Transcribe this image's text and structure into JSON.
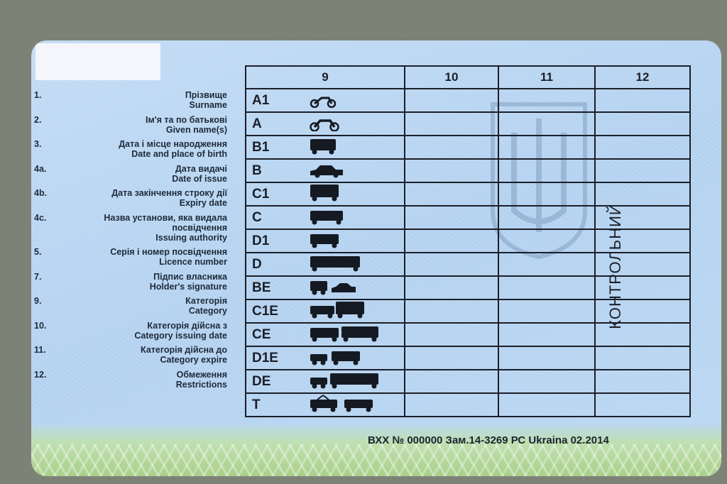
{
  "fields": [
    {
      "num": "1.",
      "uk": "Прізвище",
      "en": "Surname"
    },
    {
      "num": "2.",
      "uk": "Ім'я та по батькові",
      "en": "Given name(s)"
    },
    {
      "num": "3.",
      "uk": "Дата і місце народження",
      "en": "Date and place of birth"
    },
    {
      "num": "4a.",
      "uk": "Дата видачі",
      "en": "Date of issue"
    },
    {
      "num": "4b.",
      "uk": "Дата закінчення строку дії",
      "en": "Expiry date"
    },
    {
      "num": "4c.",
      "uk": "Назва установи, яка видала посвідчення",
      "en": "Issuing authority"
    },
    {
      "num": "5.",
      "uk": "Серія і номер посвідчення",
      "en": "Licence number"
    },
    {
      "num": "7.",
      "uk": "Підпис власника",
      "en": "Holder's signature"
    },
    {
      "num": "9.",
      "uk": "Категорія",
      "en": "Category"
    },
    {
      "num": "10.",
      "uk": "Категорія дійсна з",
      "en": "Category issuing date"
    },
    {
      "num": "11.",
      "uk": "Категорія дійсна до",
      "en": "Category expire"
    },
    {
      "num": "12.",
      "uk": "Обмеження",
      "en": "Restrictions"
    }
  ],
  "table": {
    "headers": [
      "9",
      "10",
      "11",
      "12"
    ],
    "rows": [
      {
        "code": "A1",
        "icon": "moped-icon"
      },
      {
        "code": "A",
        "icon": "motorcycle-icon"
      },
      {
        "code": "B1",
        "icon": "small-truck-icon"
      },
      {
        "code": "B",
        "icon": "car-icon"
      },
      {
        "code": "C1",
        "icon": "truck-icon"
      },
      {
        "code": "C",
        "icon": "large-truck-icon"
      },
      {
        "code": "D1",
        "icon": "minibus-icon"
      },
      {
        "code": "D",
        "icon": "bus-icon"
      },
      {
        "code": "BE",
        "icon": "car-trailer-icon"
      },
      {
        "code": "C1E",
        "icon": "truck-trailer-icon"
      },
      {
        "code": "CE",
        "icon": "large-truck-trailer-icon"
      },
      {
        "code": "D1E",
        "icon": "minibus-trailer-icon"
      },
      {
        "code": "DE",
        "icon": "bus-trailer-icon"
      },
      {
        "code": "T",
        "icon": "tram-trolleybus-icon"
      }
    ]
  },
  "control_stamp": "КОНТРОЛЬНИЙ",
  "serial": "ВХХ № 000000 Зам.14-3269 РС Ukraina 02.2014"
}
